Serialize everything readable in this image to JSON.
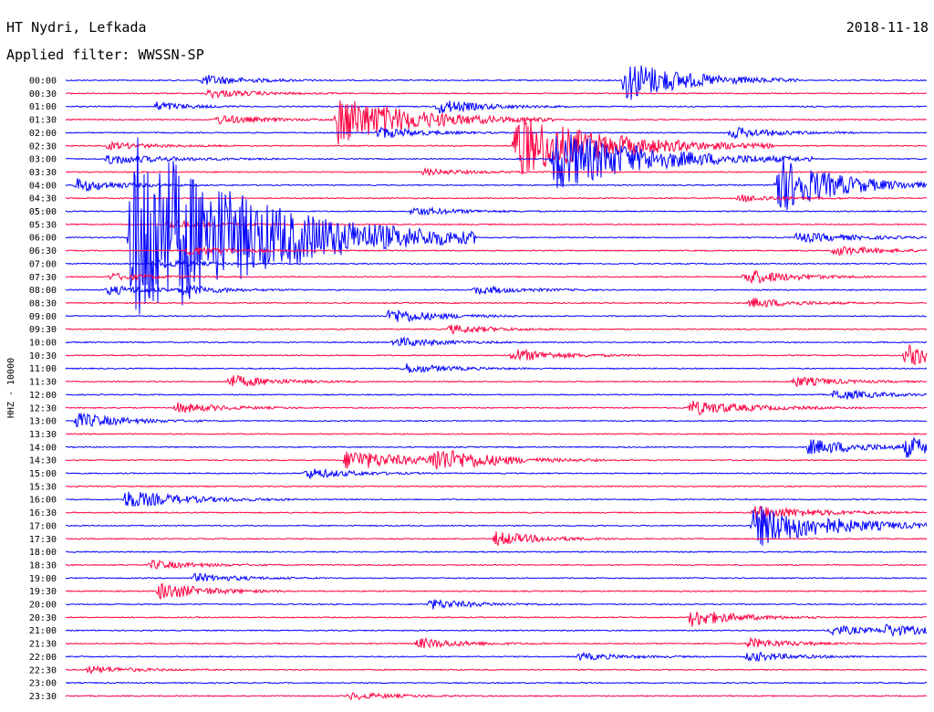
{
  "header": {
    "station": "HT Nydri, Lefkada",
    "filter": "Applied filter: WWSSN-SP",
    "date": "2018-11-18"
  },
  "channel_label": "HHZ - 10000",
  "colors": {
    "even": "#0000ff",
    "odd": "#ff0040",
    "text": "#000000"
  },
  "chart_data": {
    "type": "line",
    "subtype": "helicorder",
    "title": "HT Nydri, Lefkada",
    "subtitle": "Applied filter: WWSSN-SP",
    "date": "2018-11-18",
    "ylabel": "HHZ - 10000",
    "row_labels": [
      "00:00",
      "00:30",
      "01:00",
      "01:30",
      "02:00",
      "02:30",
      "03:00",
      "03:30",
      "04:00",
      "04:30",
      "05:00",
      "05:30",
      "06:00",
      "06:30",
      "07:00",
      "07:30",
      "08:00",
      "08:30",
      "09:00",
      "09:30",
      "10:00",
      "10:30",
      "11:00",
      "11:30",
      "12:00",
      "12:30",
      "13:00",
      "13:30",
      "14:00",
      "14:30",
      "15:00",
      "15:30",
      "16:00",
      "16:30",
      "17:00",
      "17:30",
      "18:00",
      "18:30",
      "19:00",
      "19:30",
      "20:00",
      "20:30",
      "21:00",
      "21:30",
      "22:00",
      "22:30",
      "23:00",
      "23:30"
    ],
    "row_minutes": 30,
    "grid": false,
    "events": [
      {
        "row": 0,
        "minute": 19.5,
        "amplitude": 6.0,
        "duration": 2.0
      },
      {
        "row": 0,
        "minute": 4.8,
        "amplitude": 1.5,
        "duration": 1.5
      },
      {
        "row": 1,
        "minute": 5.0,
        "amplitude": 1.2,
        "duration": 1.5
      },
      {
        "row": 2,
        "minute": 13.0,
        "amplitude": 2.0,
        "duration": 1.5
      },
      {
        "row": 2,
        "minute": 3.2,
        "amplitude": 1.4,
        "duration": 1.0
      },
      {
        "row": 3,
        "minute": 5.3,
        "amplitude": 1.3,
        "duration": 1.5
      },
      {
        "row": 3,
        "minute": 9.5,
        "amplitude": 7.0,
        "duration": 2.5
      },
      {
        "row": 4,
        "minute": 10.9,
        "amplitude": 1.6,
        "duration": 1.5
      },
      {
        "row": 4,
        "minute": 23.2,
        "amplitude": 1.6,
        "duration": 1.5
      },
      {
        "row": 5,
        "minute": 1.5,
        "amplitude": 1.0,
        "duration": 1.5
      },
      {
        "row": 5,
        "minute": 15.7,
        "amplitude": 9.0,
        "duration": 3.0
      },
      {
        "row": 6,
        "minute": 1.5,
        "amplitude": 1.4,
        "duration": 2.0
      },
      {
        "row": 6,
        "minute": 17.0,
        "amplitude": 9.0,
        "duration": 3.0
      },
      {
        "row": 7,
        "minute": 12.5,
        "amplitude": 0.9,
        "duration": 1.5
      },
      {
        "row": 8,
        "minute": 0.4,
        "amplitude": 1.8,
        "duration": 1.5
      },
      {
        "row": 8,
        "minute": 24.8,
        "amplitude": 8.0,
        "duration": 2.0
      },
      {
        "row": 9,
        "minute": 23.5,
        "amplitude": 1.0,
        "duration": 1.5
      },
      {
        "row": 10,
        "minute": 12.1,
        "amplitude": 1.2,
        "duration": 1.5
      },
      {
        "row": 11,
        "minute": 3.6,
        "amplitude": 1.2,
        "duration": 1.5
      },
      {
        "row": 12,
        "minute": 2.3,
        "amplitude": 30.0,
        "duration": 4.0
      },
      {
        "row": 12,
        "minute": 25.5,
        "amplitude": 1.4,
        "duration": 2.0
      },
      {
        "row": 13,
        "minute": 4.3,
        "amplitude": 1.3,
        "duration": 1.5
      },
      {
        "row": 13,
        "minute": 26.8,
        "amplitude": 1.4,
        "duration": 1.5
      },
      {
        "row": 14,
        "minute": 3.1,
        "amplitude": 1.2,
        "duration": 1.5
      },
      {
        "row": 15,
        "minute": 1.6,
        "amplitude": 1.0,
        "duration": 1.5
      },
      {
        "row": 15,
        "minute": 23.7,
        "amplitude": 2.2,
        "duration": 1.5
      },
      {
        "row": 16,
        "minute": 1.5,
        "amplitude": 1.3,
        "duration": 1.5
      },
      {
        "row": 16,
        "minute": 4.0,
        "amplitude": 1.2,
        "duration": 1.5
      },
      {
        "row": 16,
        "minute": 14.3,
        "amplitude": 1.2,
        "duration": 1.5
      },
      {
        "row": 17,
        "minute": 23.9,
        "amplitude": 1.4,
        "duration": 1.5
      },
      {
        "row": 18,
        "minute": 11.3,
        "amplitude": 2.2,
        "duration": 1.5
      },
      {
        "row": 19,
        "minute": 13.4,
        "amplitude": 1.2,
        "duration": 1.5
      },
      {
        "row": 20,
        "minute": 11.5,
        "amplitude": 1.4,
        "duration": 1.5
      },
      {
        "row": 21,
        "minute": 15.6,
        "amplitude": 1.8,
        "duration": 1.5
      },
      {
        "row": 21,
        "minute": 29.3,
        "amplitude": 3.0,
        "duration": 1.5
      },
      {
        "row": 22,
        "minute": 11.8,
        "amplitude": 1.4,
        "duration": 1.5
      },
      {
        "row": 23,
        "minute": 5.7,
        "amplitude": 1.8,
        "duration": 1.5
      },
      {
        "row": 23,
        "minute": 25.4,
        "amplitude": 1.4,
        "duration": 1.5
      },
      {
        "row": 24,
        "minute": 26.8,
        "amplitude": 1.5,
        "duration": 1.5
      },
      {
        "row": 25,
        "minute": 3.9,
        "amplitude": 1.4,
        "duration": 1.5
      },
      {
        "row": 25,
        "minute": 21.8,
        "amplitude": 2.0,
        "duration": 2.0
      },
      {
        "row": 26,
        "minute": 0.4,
        "amplitude": 2.2,
        "duration": 1.5
      },
      {
        "row": 28,
        "minute": 25.9,
        "amplitude": 2.2,
        "duration": 2.0
      },
      {
        "row": 28,
        "minute": 29.3,
        "amplitude": 2.5,
        "duration": 1.5
      },
      {
        "row": 29,
        "minute": 9.8,
        "amplitude": 3.0,
        "duration": 2.0
      },
      {
        "row": 29,
        "minute": 12.8,
        "amplitude": 3.0,
        "duration": 2.0
      },
      {
        "row": 30,
        "minute": 8.4,
        "amplitude": 1.5,
        "duration": 1.5
      },
      {
        "row": 32,
        "minute": 2.1,
        "amplitude": 2.5,
        "duration": 2.0
      },
      {
        "row": 33,
        "minute": 24.0,
        "amplitude": 2.0,
        "duration": 2.0
      },
      {
        "row": 34,
        "minute": 24.0,
        "amplitude": 6.0,
        "duration": 2.5
      },
      {
        "row": 35,
        "minute": 15.0,
        "amplitude": 2.0,
        "duration": 1.5
      },
      {
        "row": 37,
        "minute": 3.0,
        "amplitude": 1.2,
        "duration": 1.5
      },
      {
        "row": 38,
        "minute": 4.5,
        "amplitude": 1.2,
        "duration": 1.5
      },
      {
        "row": 39,
        "minute": 3.3,
        "amplitude": 2.5,
        "duration": 1.5
      },
      {
        "row": 40,
        "minute": 12.7,
        "amplitude": 1.4,
        "duration": 1.5
      },
      {
        "row": 41,
        "minute": 21.8,
        "amplitude": 2.5,
        "duration": 1.5
      },
      {
        "row": 42,
        "minute": 26.7,
        "amplitude": 1.4,
        "duration": 1.5
      },
      {
        "row": 42,
        "minute": 28.6,
        "amplitude": 1.4,
        "duration": 1.5
      },
      {
        "row": 43,
        "minute": 12.3,
        "amplitude": 1.5,
        "duration": 1.5
      },
      {
        "row": 43,
        "minute": 23.8,
        "amplitude": 1.4,
        "duration": 1.5
      },
      {
        "row": 44,
        "minute": 17.9,
        "amplitude": 1.0,
        "duration": 1.5
      },
      {
        "row": 44,
        "minute": 23.8,
        "amplitude": 1.4,
        "duration": 1.5
      },
      {
        "row": 45,
        "minute": 0.8,
        "amplitude": 1.0,
        "duration": 1.5
      },
      {
        "row": 47,
        "minute": 9.9,
        "amplitude": 1.0,
        "duration": 1.5
      }
    ]
  }
}
